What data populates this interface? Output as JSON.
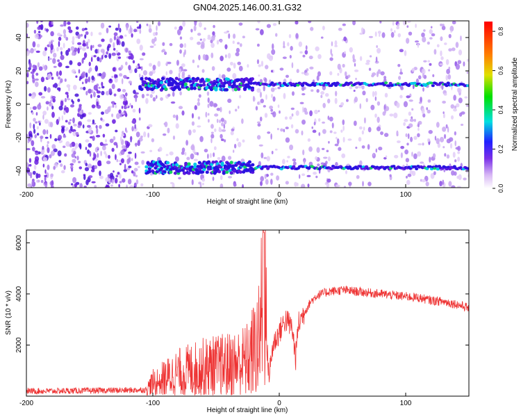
{
  "title": "GN04.2025.146.00.31.G32",
  "chart_data": [
    {
      "type": "heatmap",
      "xlabel": "Height of straight line (km)",
      "ylabel": "Frequency (Hz)",
      "xlim": [
        -200,
        150
      ],
      "ylim": [
        -50,
        50
      ],
      "xticks": [
        "-200",
        "-100",
        "0",
        "100"
      ],
      "yticks": [
        "-40",
        "-20",
        "0",
        "20",
        "40"
      ],
      "colorbar": {
        "label": "Normalized spectral amplitude",
        "range": [
          0,
          0.85
        ],
        "ticks": [
          "0.0",
          "0.2",
          "0.4",
          "0.6",
          "0.8"
        ]
      },
      "bands": [
        {
          "x_start": -110,
          "x_end": 150,
          "frequency": 12
        },
        {
          "x_start": -105,
          "x_end": 150,
          "frequency": -38
        }
      ]
    },
    {
      "type": "line",
      "xlabel": "Height of straight line (km)",
      "ylabel": "SNR (10 * v/v)",
      "xlim": [
        -200,
        150
      ],
      "ylim": [
        0,
        6500
      ],
      "xticks": [
        "-200",
        "-100",
        "0",
        "100"
      ],
      "yticks": [
        "2000",
        "4000",
        "6000"
      ],
      "color": "#ee3333",
      "series": [
        {
          "x": [
            -200,
            -180,
            -160,
            -140,
            -120,
            -105,
            -100,
            -90,
            -80,
            -70,
            -60,
            -50,
            -40,
            -30,
            -25,
            -20,
            -15,
            -12,
            -10,
            -8,
            -5,
            0,
            5,
            10,
            13,
            15,
            20,
            25,
            30,
            40,
            50,
            60,
            70,
            80,
            90,
            100,
            110,
            120,
            130,
            140,
            150
          ],
          "y": [
            200,
            200,
            210,
            220,
            230,
            250,
            500,
            700,
            900,
            1000,
            1100,
            1150,
            1200,
            1300,
            1400,
            1800,
            2200,
            6400,
            2000,
            800,
            2000,
            2500,
            3000,
            2700,
            1500,
            2800,
            3300,
            3700,
            3950,
            4100,
            4150,
            4100,
            4050,
            4000,
            3950,
            3900,
            3850,
            3750,
            3700,
            3600,
            3450
          ]
        }
      ]
    }
  ]
}
